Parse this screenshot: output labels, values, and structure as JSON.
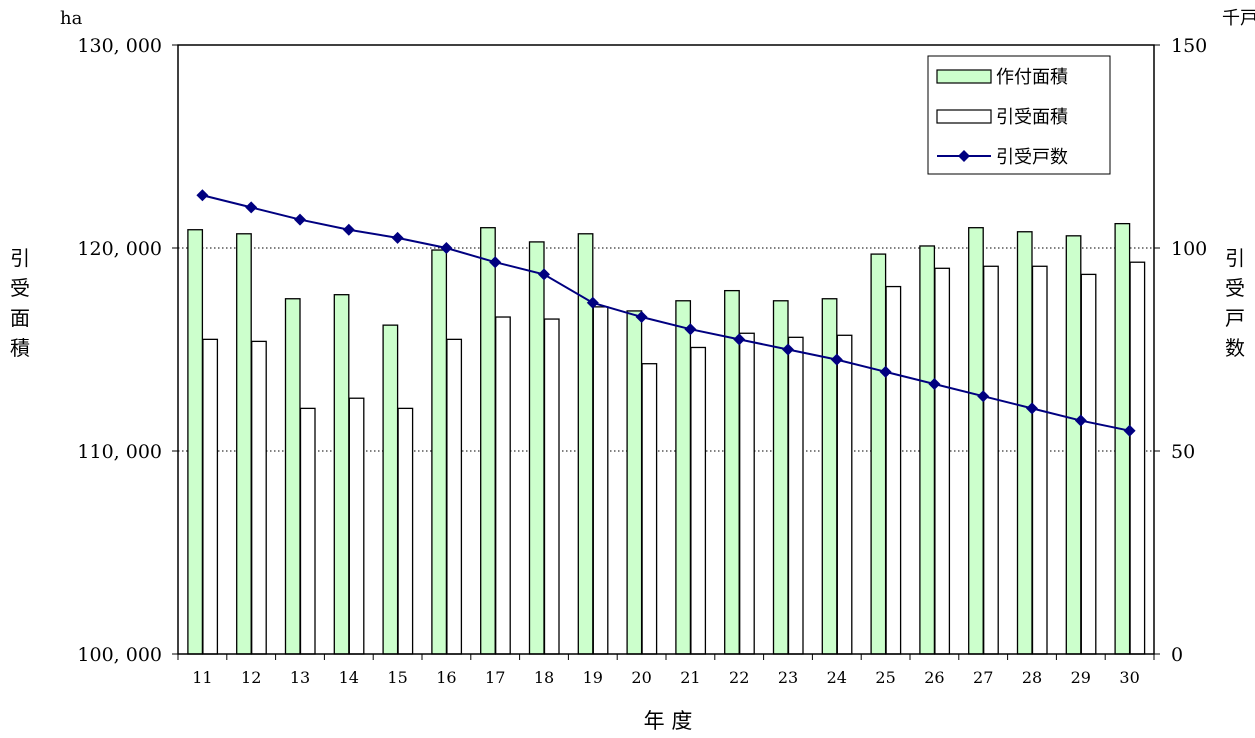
{
  "chart_data": {
    "type": "bar",
    "categories": [
      "11",
      "12",
      "13",
      "14",
      "15",
      "16",
      "17",
      "18",
      "19",
      "20",
      "21",
      "22",
      "23",
      "24",
      "25",
      "26",
      "27",
      "28",
      "29",
      "30"
    ],
    "series": [
      {
        "name": "作付面積",
        "type": "bar",
        "axis": "left",
        "color": "#ccffcc",
        "values": [
          120900,
          120700,
          117500,
          117700,
          116200,
          119900,
          121000,
          120300,
          120700,
          116900,
          117400,
          117900,
          117400,
          117500,
          119700,
          120100,
          121000,
          120800,
          120600,
          121200
        ]
      },
      {
        "name": "引受面積",
        "type": "bar",
        "axis": "left",
        "color": "#ffffff",
        "values": [
          115500,
          115400,
          112100,
          112600,
          112100,
          115500,
          116600,
          116500,
          117100,
          114300,
          115100,
          115800,
          115600,
          115700,
          118100,
          119000,
          119100,
          119100,
          118700,
          119300
        ]
      },
      {
        "name": "引受戸数",
        "type": "line",
        "axis": "right",
        "color": "#000080",
        "values": [
          113,
          110,
          107,
          104.5,
          102.5,
          100,
          96.5,
          93.5,
          86.5,
          83,
          80,
          77.5,
          75,
          72.5,
          69.5,
          66.5,
          63.5,
          60.5,
          57.5,
          55
        ]
      }
    ],
    "left_axis": {
      "unit": "ha",
      "label": "引受面積",
      "ylim": [
        100000,
        130000
      ],
      "ticks": [
        100000,
        110000,
        120000,
        130000
      ],
      "tick_labels": [
        "100, 000",
        "110, 000",
        "120, 000",
        "130, 000"
      ]
    },
    "right_axis": {
      "unit": "千戸",
      "label": "引受戸数",
      "ylim": [
        0,
        150
      ],
      "ticks": [
        0,
        50,
        100,
        150
      ],
      "tick_labels": [
        "0",
        "50",
        "100",
        "150"
      ]
    },
    "xlabel": "年 度",
    "grid": "dotted-horizontal",
    "legend_position": "top-right"
  }
}
